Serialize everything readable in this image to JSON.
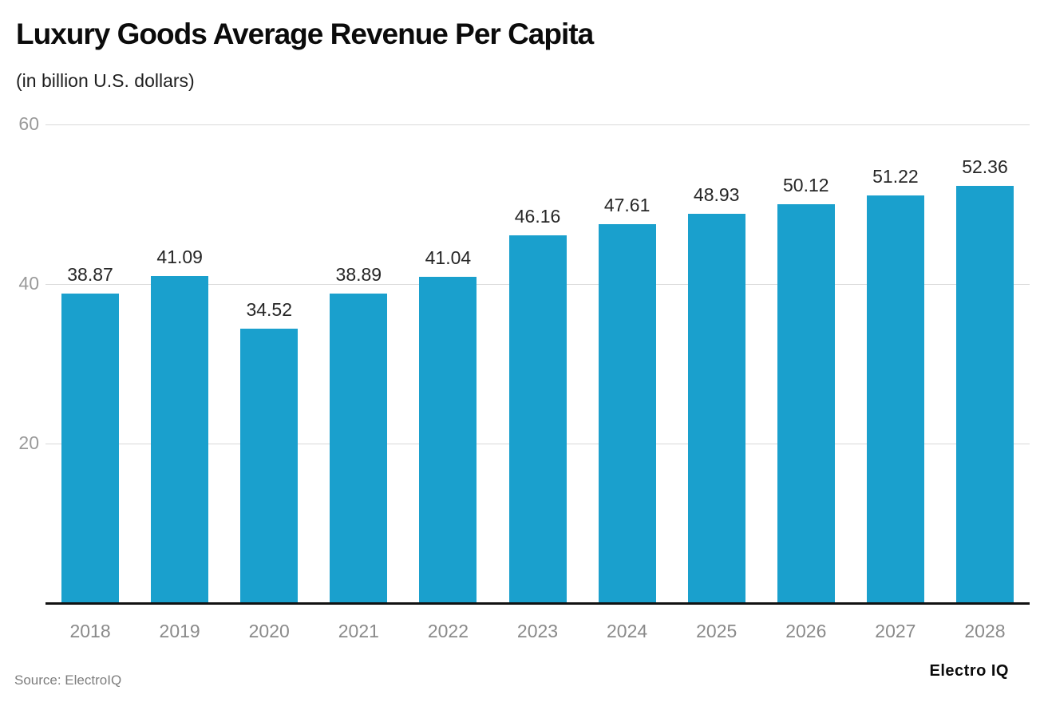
{
  "header": {
    "title": "Luxury Goods Average Revenue Per Capita",
    "subtitle": "(in billion U.S. dollars)"
  },
  "footer": {
    "source": "Source: ElectroIQ",
    "brand": "Electro IQ"
  },
  "chart_data": {
    "type": "bar",
    "title": "Luxury Goods Average Revenue Per Capita",
    "subtitle": "(in billion U.S. dollars)",
    "categories": [
      "2018",
      "2019",
      "2020",
      "2021",
      "2022",
      "2023",
      "2024",
      "2025",
      "2026",
      "2027",
      "2028"
    ],
    "values": [
      38.87,
      41.09,
      34.52,
      38.89,
      41.04,
      46.16,
      47.61,
      48.93,
      50.12,
      51.22,
      52.36
    ],
    "xlabel": "",
    "ylabel": "",
    "ylim": [
      0,
      60
    ],
    "yticks": [
      20,
      40,
      60
    ],
    "grid": true,
    "legend": false,
    "value_labels_shown": true,
    "colors": {
      "bar": "#1AA0CD",
      "grid": "#d9d9d9",
      "axis": "#111111",
      "tick_label": "#9a9a9a",
      "value_label": "#262626",
      "category_label": "#8a8a8a"
    }
  }
}
